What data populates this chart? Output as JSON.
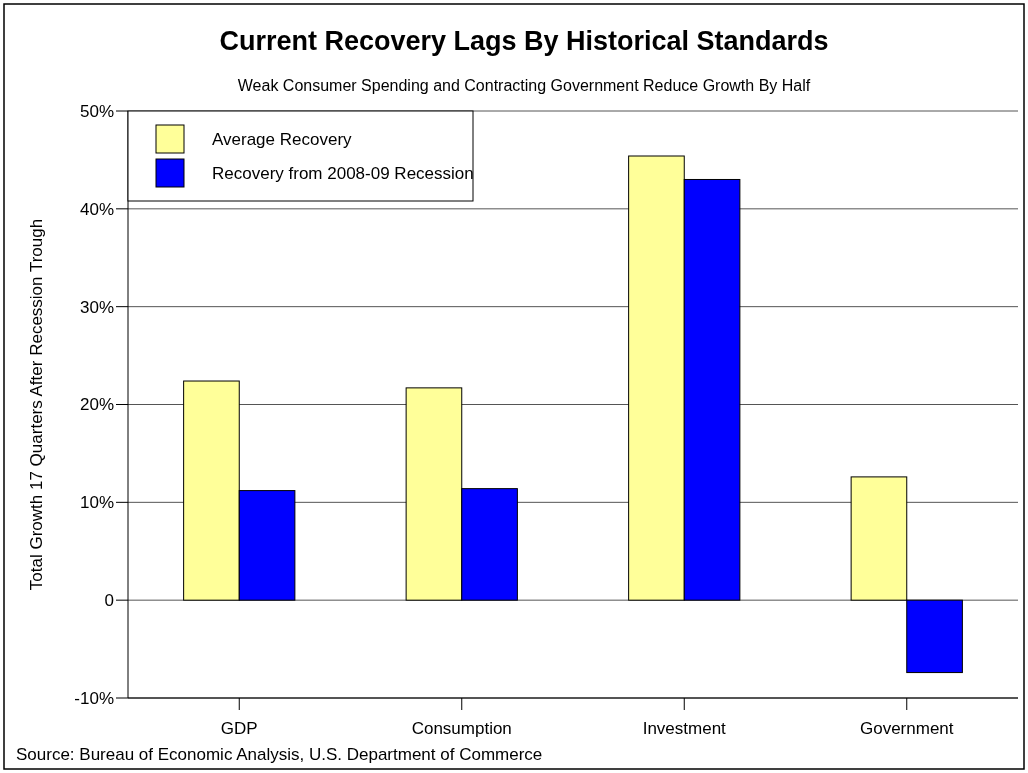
{
  "chart_data": {
    "type": "bar",
    "title": "Current Recovery Lags By Historical Standards",
    "subtitle": "Weak Consumer Spending and Contracting Government Reduce Growth By Half",
    "ylabel": "Total Growth 17 Quarters After Recession Trough",
    "categories": [
      "GDP",
      "Consumption",
      "Investment",
      "Government"
    ],
    "series": [
      {
        "name": "Average Recovery",
        "color": "#ffff99",
        "values": [
          22.4,
          21.7,
          45.4,
          12.6
        ]
      },
      {
        "name": "Recovery from 2008-09 Recession",
        "color": "#0000ff",
        "values": [
          11.2,
          11.4,
          43.0,
          -7.4
        ]
      }
    ],
    "ylim": [
      -10,
      50
    ],
    "yticks": [
      {
        "value": -10,
        "label": "-10%"
      },
      0,
      {
        "value": 10,
        "label": "10%"
      },
      {
        "value": 20,
        "label": "20%"
      },
      {
        "value": 30,
        "label": "30%"
      },
      {
        "value": 40,
        "label": "40%"
      },
      {
        "value": 50,
        "label": "50%"
      }
    ],
    "grid": "y",
    "legend": "top left",
    "annotations": [
      "Source: Bureau of Economic Analysis, U.S. Department of Commerce"
    ]
  }
}
